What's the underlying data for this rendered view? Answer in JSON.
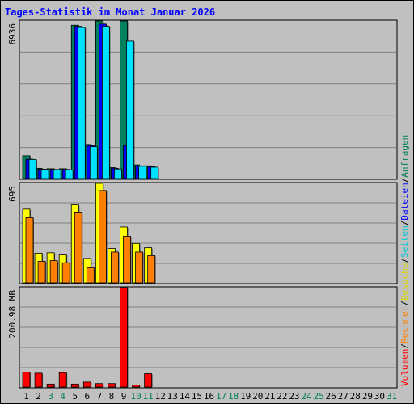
{
  "chart_data": {
    "type": "bar",
    "title": "Tages-Statistik im Monat Januar 2026",
    "categories": [
      "1",
      "2",
      "3",
      "4",
      "5",
      "6",
      "7",
      "8",
      "9",
      "10",
      "11",
      "12",
      "13",
      "14",
      "15",
      "16",
      "17",
      "18",
      "19",
      "20",
      "21",
      "22",
      "23",
      "24",
      "25",
      "26",
      "27",
      "28",
      "29",
      "30",
      "31"
    ],
    "weekend_days": [
      3,
      4,
      10,
      11,
      17,
      18,
      24,
      25,
      31
    ],
    "panels": [
      {
        "ymax": 6936,
        "ymax_label": "6936",
        "series": [
          {
            "name": "Anfragen",
            "color": "#00805c",
            "values": [
              1000,
              450,
              430,
              430,
              6750,
              1500,
              6936,
              480,
              6936,
              600,
              560,
              0,
              0,
              0,
              0,
              0,
              0,
              0,
              0,
              0,
              0,
              0,
              0,
              0,
              0,
              0,
              0,
              0,
              0,
              0,
              0
            ]
          },
          {
            "name": "Dateien",
            "color": "#0000ff",
            "values": [
              850,
              410,
              400,
              400,
              6700,
              1450,
              6800,
              450,
              1450,
              560,
              520,
              0,
              0,
              0,
              0,
              0,
              0,
              0,
              0,
              0,
              0,
              0,
              0,
              0,
              0,
              0,
              0,
              0,
              0,
              0,
              0
            ]
          },
          {
            "name": "Seiten",
            "color": "#00e0ff",
            "values": [
              840,
              400,
              390,
              380,
              6650,
              1400,
              6700,
              420,
              6050,
              540,
              500,
              0,
              0,
              0,
              0,
              0,
              0,
              0,
              0,
              0,
              0,
              0,
              0,
              0,
              0,
              0,
              0,
              0,
              0,
              0,
              0
            ]
          }
        ]
      },
      {
        "ymax": 695,
        "ymax_label": "695",
        "series": [
          {
            "name": "Besuche",
            "color": "#ffff00",
            "values": [
              515,
              207,
              210,
              200,
              545,
              170,
              695,
              240,
              390,
              275,
              245,
              0,
              0,
              0,
              0,
              0,
              0,
              0,
              0,
              0,
              0,
              0,
              0,
              0,
              0,
              0,
              0,
              0,
              0,
              0,
              0
            ]
          },
          {
            "name": "Rechner",
            "color": "#ff8000",
            "values": [
              455,
              150,
              155,
              140,
              495,
              105,
              645,
              215,
              325,
              215,
              190,
              0,
              0,
              0,
              0,
              0,
              0,
              0,
              0,
              0,
              0,
              0,
              0,
              0,
              0,
              0,
              0,
              0,
              0,
              0,
              0
            ]
          }
        ]
      },
      {
        "ymax": 200.98,
        "ymax_label": "200.98 MB",
        "series": [
          {
            "name": "Volumen",
            "color": "#ff0000",
            "values": [
              30,
              28,
              6,
              29,
              6,
              10,
              7,
              7,
              200.98,
              4,
              27,
              0,
              0,
              0,
              0,
              0,
              0,
              0,
              0,
              0,
              0,
              0,
              0,
              0,
              0,
              0,
              0,
              0,
              0,
              0,
              0
            ]
          }
        ]
      }
    ],
    "legend": [
      {
        "label": "Volumen",
        "color": "#ff0000"
      },
      {
        "label": "Rechner",
        "color": "#ff8000"
      },
      {
        "label": "Besuche",
        "color": "#d8d800"
      },
      {
        "label": "Seiten",
        "color": "#00c8d8"
      },
      {
        "label": "Dateien",
        "color": "#0000ff"
      },
      {
        "label": "Anfragen",
        "color": "#00805c"
      }
    ],
    "legend_separator": "/",
    "colors": {
      "background": "#c0c0c0",
      "grid": "#808080",
      "weekday_label": "#000000",
      "weekend_label": "#00805c"
    }
  }
}
